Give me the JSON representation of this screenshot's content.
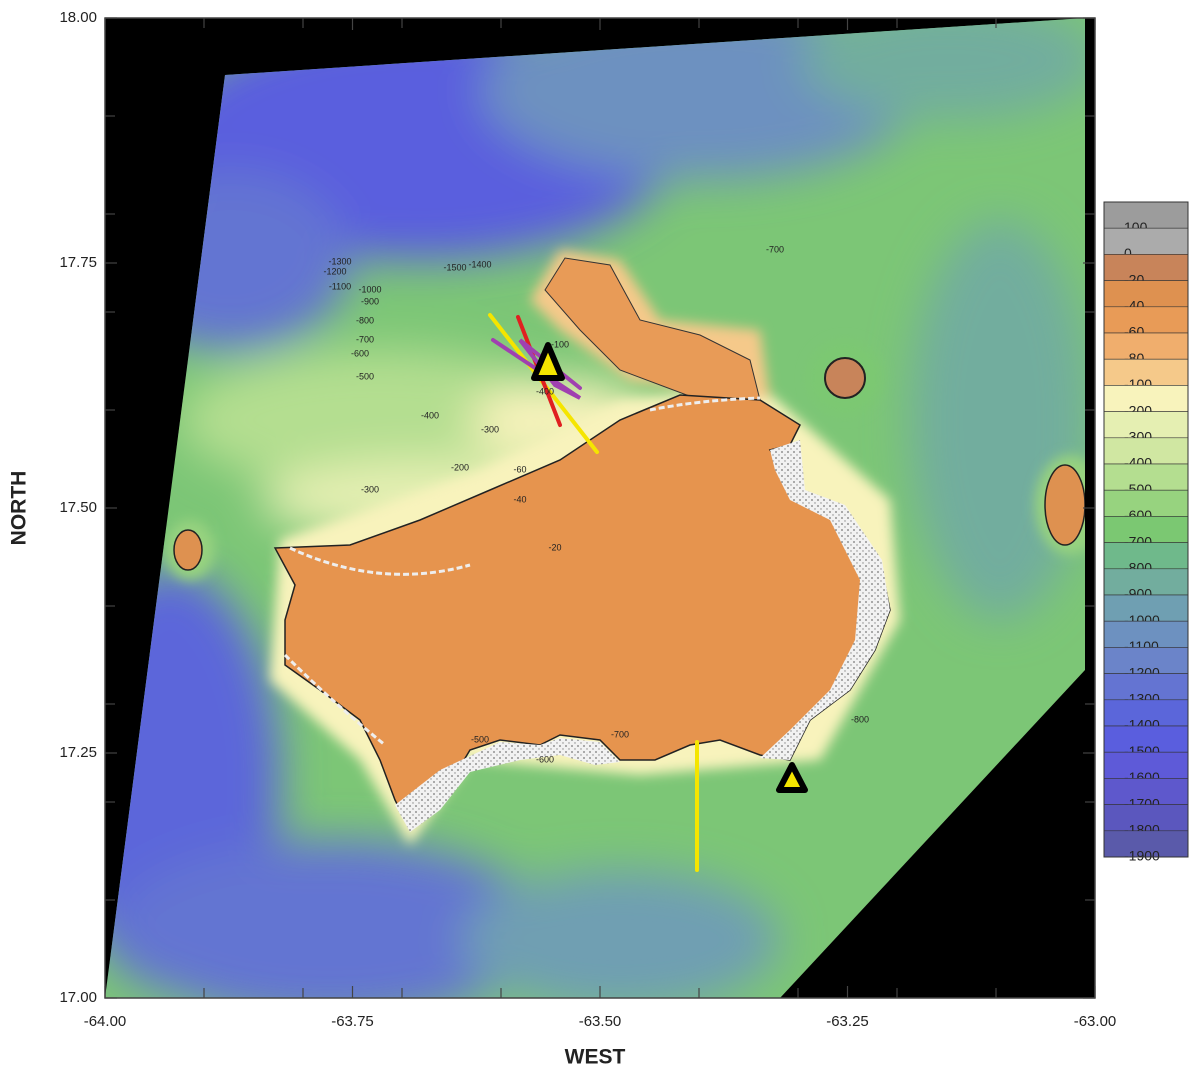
{
  "map": {
    "xlim": [
      -64,
      -63
    ],
    "ylim": [
      17,
      18
    ],
    "xticks": [
      {
        "value": -64,
        "label": "-64.00"
      },
      {
        "value": -63.75,
        "label": "-63.75"
      },
      {
        "value": -63.5,
        "label": "-63.50"
      },
      {
        "value": -63.25,
        "label": "-63.25"
      },
      {
        "value": -63,
        "label": "-63.00"
      }
    ],
    "yticks": [
      {
        "value": 17,
        "label": "17.00"
      },
      {
        "value": 17.25,
        "label": "17.25"
      },
      {
        "value": 17.5,
        "label": "17.50"
      },
      {
        "value": 17.75,
        "label": "17.75"
      },
      {
        "value": 18,
        "label": "18.00"
      }
    ],
    "xticks_minor": [
      -63.9,
      -63.8,
      -63.7,
      -63.6,
      -63.4,
      -63.3,
      -63.2,
      -63.1
    ],
    "yticks_minor": [
      17.1,
      17.2,
      17.3,
      17.4,
      17.6,
      17.7,
      17.8,
      17.9
    ],
    "x_label": "WEST",
    "y_label": "NORTH",
    "colorbar": {
      "levels": [
        100,
        0,
        -20,
        -40,
        -60,
        -80,
        -100,
        -200,
        -300,
        -400,
        -500,
        -600,
        -700,
        -800,
        -900,
        -1000,
        -1100,
        -1200,
        -1300,
        -1400,
        -1500,
        -1600,
        -1700,
        -1800,
        -1900
      ],
      "colors": [
        "#9c9c9c",
        "#ababab",
        "#c8845a",
        "#de9150",
        "#e89b57",
        "#f0ae6d",
        "#f5c98a",
        "#f8f3bc",
        "#e5efb2",
        "#d0e7a2",
        "#b4de90",
        "#97d37f",
        "#7bc872",
        "#6fb98b",
        "#72ad9e",
        "#6f9fb2",
        "#6d91c0",
        "#6b84c9",
        "#6474d2",
        "#5b66da",
        "#5a5ede",
        "#5e5ad8",
        "#5e58cc",
        "#5b57be",
        "#5a5aaa"
      ]
    },
    "contour_labels": [
      "-1500",
      "-1400",
      "-1300",
      "-1200",
      "-1100",
      "-1000",
      "-900",
      "-800",
      "-700",
      "-600",
      "-500",
      "-400",
      "-300",
      "-200",
      "-300",
      "-100",
      "-60",
      "-40",
      "-20",
      "-400",
      "-500",
      "-600",
      "-700",
      "-800",
      "-700"
    ]
  }
}
